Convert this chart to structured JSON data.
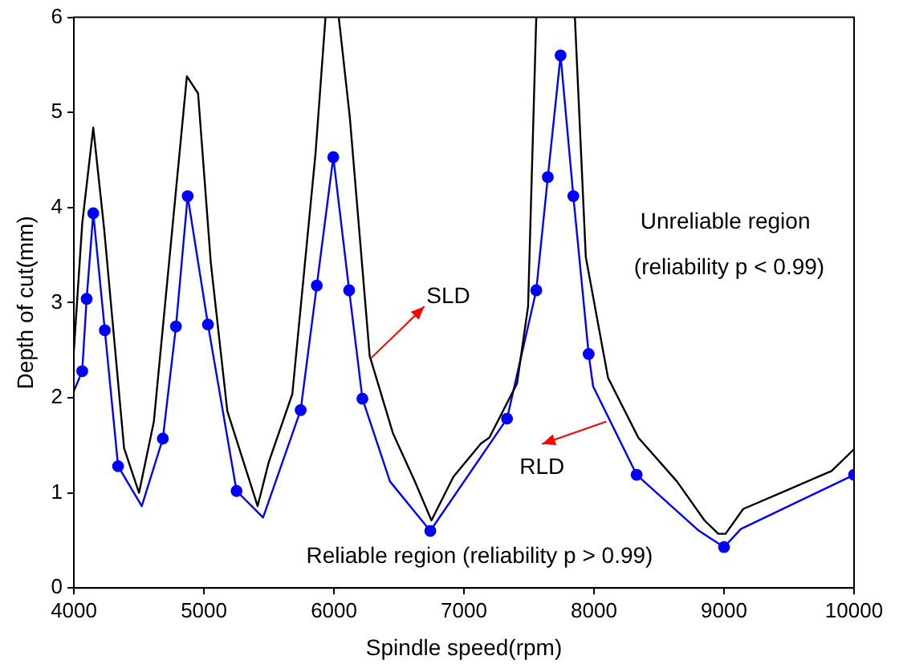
{
  "chart_data": {
    "type": "line",
    "xlabel": "Spindle speed(rpm)",
    "ylabel": "Depth of cut(mm)",
    "xlim": [
      4000,
      10000
    ],
    "xticks": [
      4000,
      5000,
      6000,
      7000,
      8000,
      9000,
      10000
    ],
    "ylim": [
      0,
      6
    ],
    "yticks": [
      0,
      1,
      2,
      3,
      4,
      5,
      6
    ],
    "grid": false,
    "legend": false,
    "line_style": "solid",
    "series": [
      {
        "color": "#000000",
        "marker": "none",
        "x": [
          4000,
          4064,
          4149,
          4233,
          4386,
          4501,
          4615,
          4869,
          4955,
          5053,
          5180,
          5413,
          5498,
          5680,
          5859,
          5935,
          5990,
          6037,
          6122,
          6275,
          6453,
          6622,
          6750,
          6919,
          7131,
          7195,
          7408,
          7493,
          7556,
          7700,
          7853,
          7937,
          8108,
          8341,
          8638,
          8850,
          8956,
          9012,
          9147,
          9487,
          9827,
          10000
        ],
        "values": [
          2.5,
          3.83,
          4.84,
          3.77,
          1.47,
          1.0,
          1.75,
          5.38,
          5.2,
          3.42,
          1.86,
          0.86,
          1.32,
          2.04,
          4.58,
          6,
          null,
          6,
          4.95,
          2.44,
          1.63,
          1.12,
          0.71,
          1.17,
          1.52,
          1.58,
          2.15,
          2.96,
          6,
          null,
          6,
          3.48,
          2.21,
          1.58,
          1.12,
          0.71,
          0.57,
          0.57,
          0.83,
          1.03,
          1.23,
          1.46
        ]
      },
      {
        "color": "#0000ff",
        "marker": "none",
        "x": [
          4000,
          4064,
          4098,
          4149,
          4238,
          4340,
          4522,
          4684,
          4785,
          4875,
          5031,
          5251,
          5455,
          5744,
          5868,
          5995,
          6117,
          6219,
          6431,
          6741,
          7331,
          7556,
          7645,
          7743,
          7841,
          7959,
          7993,
          8328,
          8808,
          9000,
          9130,
          10000
        ],
        "values": [
          2.07,
          2.28,
          3.04,
          3.94,
          2.71,
          1.28,
          0.86,
          1.57,
          2.75,
          4.12,
          2.77,
          1.02,
          0.74,
          1.87,
          3.18,
          4.53,
          3.13,
          1.99,
          1.12,
          0.6,
          1.78,
          3.13,
          4.32,
          5.6,
          4.12,
          2.46,
          2.12,
          1.19,
          0.6,
          0.43,
          0.62,
          1.19
        ]
      },
      {
        "type": "scatter",
        "color": "#0000ff",
        "marker": "circle",
        "x": [
          4064,
          4098,
          4149,
          4238,
          4340,
          4684,
          4785,
          4875,
          5031,
          5251,
          5744,
          5868,
          5995,
          6117,
          6219,
          6741,
          7331,
          7556,
          7645,
          7743,
          7841,
          7959,
          8328,
          9000,
          10000
        ],
        "values": [
          2.28,
          3.04,
          3.94,
          2.71,
          1.28,
          1.57,
          2.75,
          4.12,
          2.77,
          1.02,
          1.87,
          3.18,
          4.53,
          3.13,
          1.99,
          0.6,
          1.78,
          3.13,
          4.32,
          5.6,
          4.12,
          2.46,
          1.19,
          0.43,
          1.19
        ]
      }
    ],
    "annotations": [
      "SLD",
      "RLD",
      "Unreliable region",
      "(reliability p < 0.99)",
      "Reliable region (reliability p > 0.99)"
    ]
  }
}
